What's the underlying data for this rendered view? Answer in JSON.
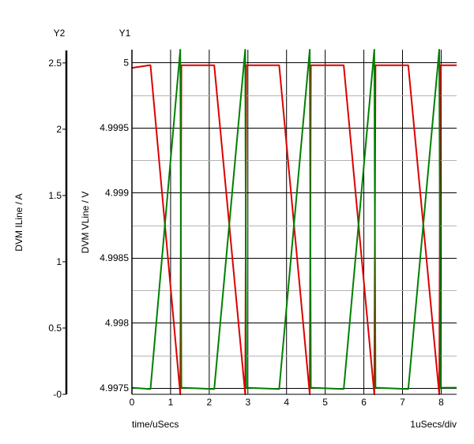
{
  "chart_data": {
    "type": "line",
    "title": "",
    "xlabel": "time/uSecs",
    "x_scale_label": "1uSecs/div",
    "xlim": [
      0,
      8.4
    ],
    "x_ticks": [
      0,
      1,
      2,
      3,
      4,
      5,
      6,
      7,
      8
    ],
    "grid": true,
    "y1": {
      "name": "Y1",
      "label": "DVM VLine / V",
      "ylim": [
        4.99745,
        5.0001
      ],
      "ticks": [
        "4.9975",
        "4.998",
        "4.9985",
        "4.999",
        "4.9995",
        "5"
      ]
    },
    "y2": {
      "name": "Y2",
      "label": "DVM ILine / A",
      "ylim": [
        0,
        2.6
      ],
      "ticks": [
        "-0",
        "0.5",
        "1",
        "1.5",
        "2",
        "2.5"
      ]
    },
    "series": [
      {
        "axis": "y1",
        "color": "#dd0000",
        "x": [
          0,
          0.45,
          0.48,
          1.25,
          1.28,
          2.1,
          2.13,
          2.93,
          2.96,
          3.78,
          3.81,
          4.6,
          4.63,
          5.45,
          5.48,
          6.27,
          6.3,
          7.12,
          7.15,
          7.95,
          7.98,
          8.4
        ],
        "values": [
          4.99996,
          4.99998,
          4.99998,
          4.99745,
          4.99998,
          4.99998,
          4.99998,
          4.99745,
          4.99998,
          4.99998,
          4.99998,
          4.99745,
          4.99998,
          4.99998,
          4.99998,
          4.99745,
          4.99998,
          4.99998,
          4.99998,
          4.99745,
          4.99998,
          4.99998
        ]
      },
      {
        "axis": "y2",
        "color": "#008000",
        "x": [
          0,
          0.45,
          0.48,
          1.25,
          1.28,
          2.1,
          2.13,
          2.93,
          2.96,
          3.78,
          3.81,
          4.6,
          4.63,
          5.45,
          5.48,
          6.27,
          6.3,
          7.12,
          7.15,
          7.95,
          7.98,
          8.4
        ],
        "values": [
          0.05,
          0.04,
          0.04,
          2.6,
          0.05,
          0.04,
          0.04,
          2.6,
          0.05,
          0.04,
          0.04,
          2.6,
          0.05,
          0.04,
          0.04,
          2.6,
          0.05,
          0.04,
          0.04,
          2.6,
          0.05,
          0.05
        ]
      }
    ]
  }
}
